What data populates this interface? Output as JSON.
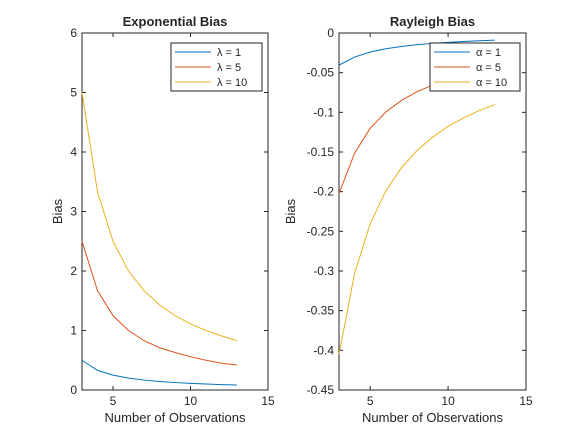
{
  "chart_data": [
    {
      "type": "line",
      "title": "Exponential Bias",
      "xlabel": "Number of Observations",
      "ylabel": "Bias",
      "xlim": [
        3,
        15
      ],
      "ylim": [
        0,
        6
      ],
      "xticks": [
        5,
        10,
        15
      ],
      "yticks": [
        0,
        1,
        2,
        3,
        4,
        5,
        6
      ],
      "grid": false,
      "legend_position": "top-right",
      "x": [
        3,
        4,
        5,
        6,
        7,
        8,
        9,
        10,
        11,
        12,
        13
      ],
      "series": [
        {
          "name": "λ = 1",
          "color": "#0072bd",
          "values": [
            0.5,
            0.33,
            0.25,
            0.2,
            0.167,
            0.143,
            0.125,
            0.111,
            0.1,
            0.091,
            0.083
          ]
        },
        {
          "name": "λ = 5",
          "color": "#d95319",
          "values": [
            2.5,
            1.67,
            1.25,
            1.0,
            0.83,
            0.71,
            0.63,
            0.56,
            0.5,
            0.45,
            0.42
          ]
        },
        {
          "name": "λ = 10",
          "color": "#edb120",
          "values": [
            5.0,
            3.33,
            2.5,
            2.0,
            1.67,
            1.43,
            1.25,
            1.11,
            1.0,
            0.91,
            0.83
          ]
        }
      ]
    },
    {
      "type": "line",
      "title": "Rayleigh Bias",
      "xlabel": "Number of Observations",
      "ylabel": "Bias",
      "xlim": [
        3,
        15
      ],
      "ylim": [
        -0.45,
        0
      ],
      "xticks": [
        5,
        10,
        15
      ],
      "yticks": [
        0,
        -0.05,
        -0.1,
        -0.15,
        -0.2,
        -0.25,
        -0.3,
        -0.35,
        -0.4,
        -0.45
      ],
      "ytick_labels": [
        "0",
        "-0.05",
        "-0.1",
        "-0.15",
        "-0.2",
        "-0.25",
        "-0.3",
        "-0.35",
        "-0.4",
        "-0.45"
      ],
      "grid": false,
      "legend_position": "top-right",
      "x": [
        3,
        4,
        5,
        6,
        7,
        8,
        9,
        10,
        11,
        12,
        13
      ],
      "series": [
        {
          "name": "α = 1",
          "color": "#0072bd",
          "values": [
            -0.0405,
            -0.0303,
            -0.024,
            -0.0199,
            -0.017,
            -0.0148,
            -0.0131,
            -0.0118,
            -0.0107,
            -0.0098,
            -0.009
          ]
        },
        {
          "name": "α = 5",
          "color": "#d95319",
          "values": [
            -0.2025,
            -0.1515,
            -0.1202,
            -0.0996,
            -0.085,
            -0.0741,
            -0.0656,
            -0.0589,
            -0.0535,
            -0.0489,
            -0.0451
          ]
        },
        {
          "name": "α = 10",
          "color": "#edb120",
          "values": [
            -0.405,
            -0.303,
            -0.2404,
            -0.1992,
            -0.17,
            -0.1482,
            -0.1313,
            -0.1178,
            -0.1069,
            -0.0978,
            -0.0902
          ]
        }
      ]
    }
  ]
}
